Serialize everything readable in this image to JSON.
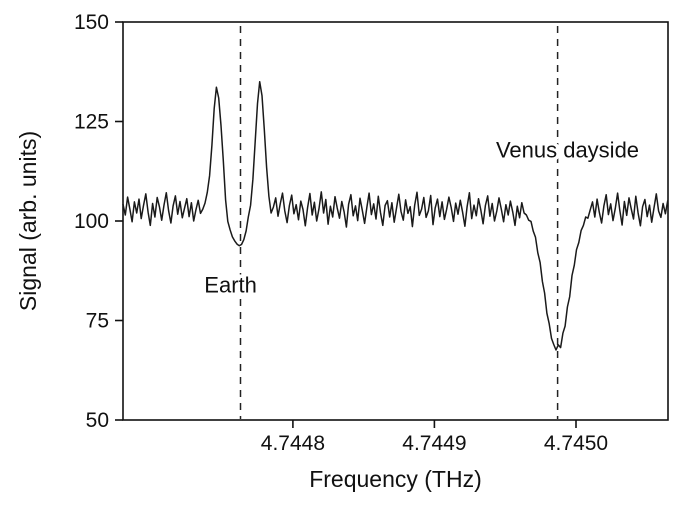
{
  "chart_data": {
    "type": "line",
    "title": "",
    "xlabel": "Frequency (THz)",
    "ylabel": "Signal (arb. units)",
    "xlim": [
      4.74468,
      4.745065
    ],
    "ylim": [
      50,
      150
    ],
    "x_ticks": [
      4.7448,
      4.7449,
      4.745
    ],
    "x_tick_labels": [
      "4.7448",
      "4.7449",
      "4.7450"
    ],
    "y_ticks": [
      50,
      75,
      100,
      125,
      150
    ],
    "y_tick_labels": [
      "50",
      "75",
      "100",
      "125",
      "150"
    ],
    "grid": false,
    "legend": "none",
    "line_color": "#1a1a1a",
    "reference_line_color": "#222222",
    "x_start": 4.74468,
    "x_step": 1.61e-06,
    "y": [
      104.2,
      101.5,
      106.0,
      103.1,
      99.8,
      104.8,
      102.0,
      105.5,
      100.6,
      103.9,
      106.8,
      102.2,
      98.9,
      104.4,
      101.0,
      105.9,
      103.5,
      100.2,
      104.0,
      107.1,
      102.6,
      99.5,
      103.8,
      106.3,
      101.7,
      104.9,
      100.8,
      103.2,
      105.6,
      101.1,
      104.6,
      100.0,
      102.8,
      105.2,
      101.9,
      103.0,
      104.5,
      107.2,
      111.4,
      119.0,
      128.3,
      133.6,
      130.9,
      124.0,
      115.2,
      105.3,
      99.9,
      97.8,
      96.0,
      95.0,
      94.2,
      93.8,
      94.1,
      95.3,
      97.5,
      101.0,
      104.0,
      110.5,
      120.0,
      129.5,
      135.0,
      131.5,
      123.0,
      113.5,
      106.2,
      102.0,
      103.5,
      105.8,
      101.2,
      104.4,
      107.0,
      102.5,
      99.6,
      103.9,
      106.5,
      101.8,
      104.1,
      100.3,
      105.0,
      102.9,
      98.8,
      103.4,
      106.9,
      101.5,
      104.7,
      100.0,
      103.1,
      107.3,
      102.0,
      105.4,
      99.2,
      103.7,
      101.0,
      106.1,
      103.3,
      100.7,
      104.9,
      102.3,
      98.5,
      104.2,
      106.6,
      101.3,
      103.8,
      100.1,
      105.7,
      102.7,
      99.4,
      103.5,
      107.0,
      101.6,
      104.3,
      100.5,
      106.2,
      102.1,
      98.9,
      103.9,
      105.1,
      101.0,
      104.6,
      99.7,
      103.2,
      106.7,
      102.4,
      100.2,
      105.3,
      101.9,
      103.6,
      98.6,
      104.0,
      107.2,
      101.4,
      103.0,
      105.9,
      100.9,
      102.6,
      106.4,
      99.1,
      103.3,
      105.5,
      101.1,
      104.8,
      100.4,
      102.9,
      106.0,
      103.4,
      99.9,
      104.5,
      101.7,
      105.2,
      102.2,
      98.7,
      103.6,
      107.1,
      100.6,
      104.0,
      101.3,
      105.6,
      102.8,
      99.3,
      103.9,
      106.3,
      101.2,
      104.4,
      100.0,
      102.5,
      105.8,
      103.0,
      99.8,
      104.1,
      101.5,
      105.0,
      102.3,
      98.9,
      103.7,
      100.8,
      104.6,
      102.0,
      101.5,
      100.2,
      99.9,
      97.5,
      95.9,
      92.0,
      89.6,
      84.8,
      81.9,
      76.8,
      74.2,
      70.5,
      69.0,
      67.6,
      68.9,
      68.2,
      71.8,
      73.6,
      78.4,
      81.0,
      86.3,
      88.9,
      92.8,
      94.6,
      97.6,
      98.9,
      101.0,
      100.7,
      102.8,
      104.8,
      101.0,
      105.5,
      102.2,
      99.5,
      103.8,
      106.6,
      101.6,
      104.3,
      100.1,
      103.2,
      107.0,
      102.7,
      99.0,
      104.9,
      101.4,
      105.8,
      103.1,
      100.5,
      106.2,
      102.0,
      98.8,
      103.6,
      105.4,
      101.1,
      104.0,
      99.7,
      103.3,
      106.8,
      102.5,
      100.9,
      104.4,
      101.8,
      105.1
    ],
    "reference_lines": [
      {
        "name": "earth-line",
        "x": 4.744763
      },
      {
        "name": "venus-line",
        "x": 4.744987
      }
    ],
    "annotations": [
      {
        "label": "Earth",
        "x": 4.744756,
        "y": 82
      },
      {
        "label": "Venus dayside",
        "x": 4.744994,
        "y": 116
      }
    ]
  }
}
